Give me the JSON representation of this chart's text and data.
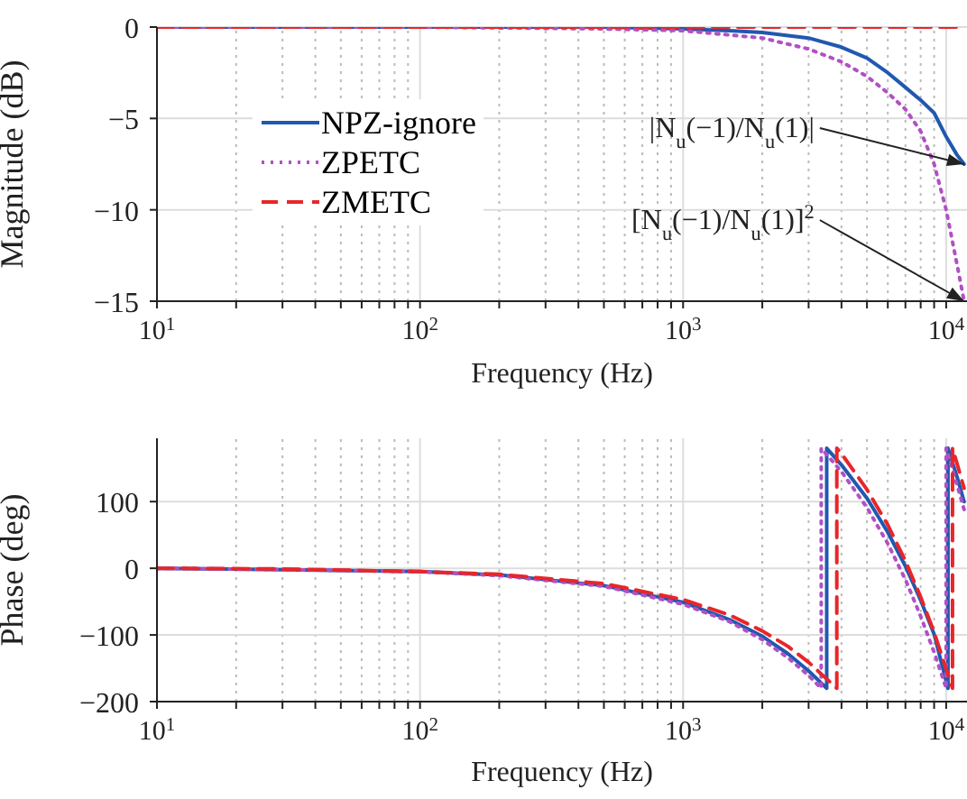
{
  "chart_data": [
    {
      "type": "line",
      "xlabel": "Frequency (Hz)",
      "ylabel": "Magnitude (dB)",
      "log": "x",
      "grid": true,
      "legend": "left",
      "xlim": [
        10,
        12000
      ],
      "ylim": [
        -15,
        0
      ],
      "xticks": [
        {
          "value": 10,
          "label": "10$^{1}$"
        },
        {
          "value": 20,
          "label": null
        },
        {
          "value": 30,
          "label": null
        },
        {
          "value": 40,
          "label": null
        },
        {
          "value": 50,
          "label": null
        },
        {
          "value": 60,
          "label": null
        },
        {
          "value": 70,
          "label": null
        },
        {
          "value": 80,
          "label": null
        },
        {
          "value": 90,
          "label": null
        },
        {
          "value": 100,
          "label": "10$^{2}$"
        },
        {
          "value": 200,
          "label": null
        },
        {
          "value": 300,
          "label": null
        },
        {
          "value": 400,
          "label": null
        },
        {
          "value": 500,
          "label": null
        },
        {
          "value": 600,
          "label": null
        },
        {
          "value": 700,
          "label": null
        },
        {
          "value": 800,
          "label": null
        },
        {
          "value": 900,
          "label": null
        },
        {
          "value": 1000,
          "label": "10$^{3}$"
        },
        {
          "value": 2000,
          "label": null
        },
        {
          "value": 3000,
          "label": null
        },
        {
          "value": 4000,
          "label": null
        },
        {
          "value": 5000,
          "label": null
        },
        {
          "value": 6000,
          "label": null
        },
        {
          "value": 7000,
          "label": null
        },
        {
          "value": 8000,
          "label": null
        },
        {
          "value": 9000,
          "label": null
        },
        {
          "value": 10000,
          "label": "10$^{4}$"
        }
      ],
      "yticks": [
        {
          "value": -15,
          "label": "−15"
        },
        {
          "value": -10,
          "label": "−10"
        },
        {
          "value": -5,
          "label": "−5"
        },
        {
          "value": 0,
          "label": "0"
        }
      ],
      "series": [
        {
          "name": "NPZ-ignore",
          "color": "#2158b0",
          "line_style": "solid",
          "x": [
            10,
            100,
            500,
            1000,
            1500,
            2000,
            3000,
            4000,
            5000,
            6000,
            7000,
            8000,
            9000,
            10000,
            11000,
            11700
          ],
          "values": [
            0,
            0,
            0,
            -0.1,
            -0.2,
            -0.3,
            -0.6,
            -1.1,
            -1.7,
            -2.5,
            -3.3,
            -4.0,
            -4.7,
            -6.0,
            -7.0,
            -7.5
          ]
        },
        {
          "name": "ZPETC",
          "color": "#b150c5",
          "line_style": "dotted",
          "x": [
            10,
            100,
            500,
            1000,
            2000,
            3000,
            4000,
            5000,
            6000,
            7000,
            8000,
            9000,
            10000,
            11000,
            11700
          ],
          "values": [
            0,
            0,
            -0.1,
            -0.2,
            -0.6,
            -1.2,
            -1.9,
            -2.7,
            -3.6,
            -4.5,
            -5.7,
            -7.5,
            -10,
            -13,
            -15
          ]
        },
        {
          "name": "ZMETC",
          "color": "#e8262a",
          "line_style": "dashed",
          "x": [
            10,
            100,
            1000,
            10000,
            11700
          ],
          "values": [
            0,
            0,
            0,
            0,
            0
          ]
        }
      ],
      "annotations": [
        {
          "text": "|N$_{u}$(−1)/N$_{u}$(1)|",
          "x": 11700,
          "y": -7.5
        },
        {
          "text": "[N$_{u}$(−1)/N$_{u}$(1)]$^{2}$",
          "x": 11700,
          "y": -15
        }
      ]
    },
    {
      "type": "line",
      "xlabel": "Frequency (Hz)",
      "ylabel": "Phase (deg)",
      "log": "x",
      "grid": true,
      "xlim": [
        10,
        12000
      ],
      "ylim": [
        -200,
        195
      ],
      "xticks": [
        {
          "value": 10,
          "label": "10$^{1}$"
        },
        {
          "value": 20,
          "label": null
        },
        {
          "value": 30,
          "label": null
        },
        {
          "value": 40,
          "label": null
        },
        {
          "value": 50,
          "label": null
        },
        {
          "value": 60,
          "label": null
        },
        {
          "value": 70,
          "label": null
        },
        {
          "value": 80,
          "label": null
        },
        {
          "value": 90,
          "label": null
        },
        {
          "value": 100,
          "label": "10$^{2}$"
        },
        {
          "value": 200,
          "label": null
        },
        {
          "value": 300,
          "label": null
        },
        {
          "value": 400,
          "label": null
        },
        {
          "value": 500,
          "label": null
        },
        {
          "value": 600,
          "label": null
        },
        {
          "value": 700,
          "label": null
        },
        {
          "value": 800,
          "label": null
        },
        {
          "value": 900,
          "label": null
        },
        {
          "value": 1000,
          "label": "10$^{3}$"
        },
        {
          "value": 2000,
          "label": null
        },
        {
          "value": 3000,
          "label": null
        },
        {
          "value": 4000,
          "label": null
        },
        {
          "value": 5000,
          "label": null
        },
        {
          "value": 6000,
          "label": null
        },
        {
          "value": 7000,
          "label": null
        },
        {
          "value": 8000,
          "label": null
        },
        {
          "value": 9000,
          "label": null
        },
        {
          "value": 10000,
          "label": "10$^{4}$"
        }
      ],
      "yticks": [
        {
          "value": -200,
          "label": "−200"
        },
        {
          "value": -100,
          "label": "−100"
        },
        {
          "value": 0,
          "label": "0"
        },
        {
          "value": 100,
          "label": "100"
        }
      ],
      "series": [
        {
          "color": "#2158b0",
          "line_style": "solid",
          "x": [
            10,
            30,
            100,
            200,
            500,
            1000,
            1500,
            2000,
            2500,
            3000,
            3515,
            3515,
            4000,
            5000,
            6000,
            7000,
            8000,
            9000,
            10160,
            10160,
            11000,
            11700
          ],
          "values": [
            0,
            -2,
            -5,
            -10,
            -26,
            -51,
            -77,
            -102,
            -128,
            -154,
            -180,
            180,
            155,
            105,
            54,
            3,
            -48,
            -99,
            -180,
            180,
            137,
            100
          ]
        },
        {
          "color": "#b150c5",
          "line_style": "dotted",
          "x": [
            10,
            30,
            100,
            200,
            500,
            1000,
            1500,
            2000,
            2500,
            3000,
            3350,
            3350,
            4000,
            5000,
            6000,
            7000,
            8000,
            9000,
            10000,
            10000,
            11000,
            11700
          ],
          "values": [
            0,
            -2,
            -5,
            -11,
            -27,
            -54,
            -80,
            -107,
            -134,
            -161,
            -180,
            180,
            145,
            91,
            37,
            -17,
            -72,
            -126,
            -180,
            180,
            125,
            88
          ]
        },
        {
          "color": "#e8262a",
          "line_style": "dashed",
          "x": [
            10,
            30,
            100,
            200,
            500,
            1000,
            1500,
            2000,
            2500,
            3000,
            3840,
            3840,
            4000,
            5000,
            6000,
            7000,
            8000,
            9000,
            10570,
            10570,
            11000,
            11700
          ],
          "values": [
            0,
            -1,
            -5,
            -9,
            -23,
            -47,
            -70,
            -94,
            -117,
            -141,
            -180,
            180,
            172,
            118,
            65,
            11,
            -43,
            -96,
            -180,
            180,
            157,
            120
          ]
        }
      ]
    }
  ]
}
